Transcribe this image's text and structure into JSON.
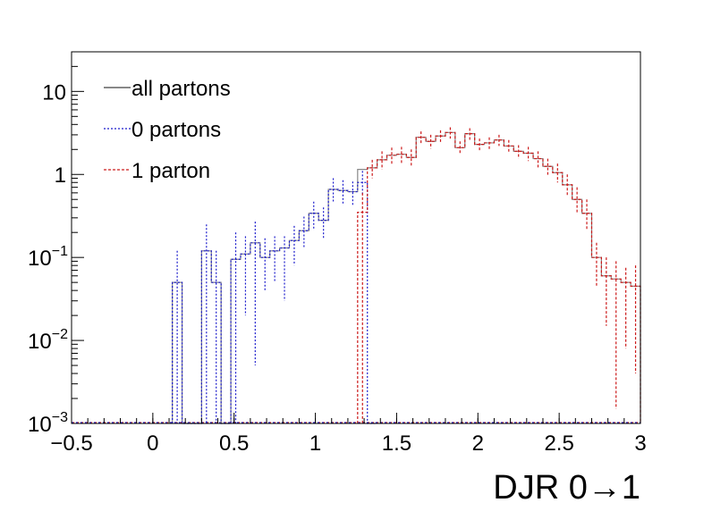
{
  "chart_data": {
    "type": "histogram",
    "title": "",
    "xlabel": "DJR 0→1",
    "ylabel": "",
    "xlim": [
      -0.5,
      3.0
    ],
    "ylim": [
      0.001,
      30
    ],
    "yscale": "log",
    "bin_width": 0.06,
    "x_ticks": [
      "−0.5",
      "0",
      "0.5",
      "1",
      "1.5",
      "2",
      "2.5",
      "3"
    ],
    "y_ticks": [
      {
        "base": "10",
        "exp": "−3"
      },
      {
        "base": "10",
        "exp": "−2"
      },
      {
        "base": "10",
        "exp": "−1"
      },
      {
        "base": "1",
        "exp": ""
      },
      {
        "base": "10",
        "exp": ""
      }
    ],
    "legend": {
      "position": "top-left",
      "entries": [
        "all partons",
        "0 partons",
        "1 parton"
      ]
    },
    "series": [
      {
        "name": "0 partons",
        "color": "#1a1acc",
        "style": "dotted",
        "bins": [
          {
            "x0": 0.12,
            "y": 0.05,
            "err_hi": 0.12,
            "err_lo": 0.001
          },
          {
            "x0": 0.18,
            "y": 0.001
          },
          {
            "x0": 0.24,
            "y": 0.001
          },
          {
            "x0": 0.3,
            "y": 0.12,
            "err_hi": 0.25,
            "err_lo": 0.001
          },
          {
            "x0": 0.36,
            "y": 0.05,
            "err_hi": 0.12,
            "err_lo": 0.001
          },
          {
            "x0": 0.42,
            "y": 0.001
          },
          {
            "x0": 0.48,
            "y": 0.095,
            "err_hi": 0.2,
            "err_lo": 0.001
          },
          {
            "x0": 0.54,
            "y": 0.11,
            "err_hi": 0.18,
            "err_lo": 0.02
          },
          {
            "x0": 0.6,
            "y": 0.15,
            "err_hi": 0.27,
            "err_lo": 0.005
          },
          {
            "x0": 0.66,
            "y": 0.1,
            "err_hi": 0.17,
            "err_lo": 0.04
          },
          {
            "x0": 0.72,
            "y": 0.12,
            "err_hi": 0.18,
            "err_lo": 0.05
          },
          {
            "x0": 0.78,
            "y": 0.13,
            "err_hi": 0.18,
            "err_lo": 0.03
          },
          {
            "x0": 0.84,
            "y": 0.16,
            "err_hi": 0.24,
            "err_lo": 0.08
          },
          {
            "x0": 0.9,
            "y": 0.21,
            "err_hi": 0.31,
            "err_lo": 0.13
          },
          {
            "x0": 0.96,
            "y": 0.34,
            "err_hi": 0.47,
            "err_lo": 0.22
          },
          {
            "x0": 1.02,
            "y": 0.28,
            "err_hi": 0.4,
            "err_lo": 0.17
          },
          {
            "x0": 1.08,
            "y": 0.66,
            "err_hi": 0.9,
            "err_lo": 0.45
          },
          {
            "x0": 1.14,
            "y": 0.64,
            "err_hi": 0.85,
            "err_lo": 0.43
          },
          {
            "x0": 1.2,
            "y": 0.62,
            "err_hi": 0.82,
            "err_lo": 0.42
          },
          {
            "x0": 1.26,
            "y": 0.8,
            "err_hi": 1.1,
            "err_lo": 0.55
          },
          {
            "x0": 1.32,
            "y": 0.001
          }
        ]
      },
      {
        "name": "1 parton",
        "color": "#cc1a1a",
        "style": "dashed",
        "bins": [
          {
            "x0": 1.26,
            "y": 0.35,
            "err_hi": 0.6,
            "err_lo": 0.001
          },
          {
            "x0": 1.32,
            "y": 1.2,
            "err_hi": 1.5,
            "err_lo": 0.9
          },
          {
            "x0": 1.38,
            "y": 1.5,
            "err_hi": 1.9,
            "err_lo": 1.15
          },
          {
            "x0": 1.44,
            "y": 1.7,
            "err_hi": 2.1,
            "err_lo": 1.3
          },
          {
            "x0": 1.5,
            "y": 1.75,
            "err_hi": 2.15,
            "err_lo": 1.35
          },
          {
            "x0": 1.56,
            "y": 1.6,
            "err_hi": 2.0,
            "err_lo": 1.25
          },
          {
            "x0": 1.62,
            "y": 2.8,
            "err_hi": 3.3,
            "err_lo": 2.3
          },
          {
            "x0": 1.68,
            "y": 2.5,
            "err_hi": 3.0,
            "err_lo": 2.05
          },
          {
            "x0": 1.74,
            "y": 2.9,
            "err_hi": 3.4,
            "err_lo": 2.4
          },
          {
            "x0": 1.8,
            "y": 3.2,
            "err_hi": 3.7,
            "err_lo": 2.7
          },
          {
            "x0": 1.86,
            "y": 2.1,
            "err_hi": 2.5,
            "err_lo": 1.75
          },
          {
            "x0": 1.92,
            "y": 3.1,
            "err_hi": 3.6,
            "err_lo": 2.6
          },
          {
            "x0": 1.98,
            "y": 2.3,
            "err_hi": 2.7,
            "err_lo": 1.9
          },
          {
            "x0": 2.04,
            "y": 2.4,
            "err_hi": 2.8,
            "err_lo": 2.0
          },
          {
            "x0": 2.1,
            "y": 2.6,
            "err_hi": 3.0,
            "err_lo": 2.2
          },
          {
            "x0": 2.16,
            "y": 2.2,
            "err_hi": 2.6,
            "err_lo": 1.85
          },
          {
            "x0": 2.22,
            "y": 1.9,
            "err_hi": 2.25,
            "err_lo": 1.55
          },
          {
            "x0": 2.28,
            "y": 1.8,
            "err_hi": 2.15,
            "err_lo": 1.45
          },
          {
            "x0": 2.34,
            "y": 1.55,
            "err_hi": 1.9,
            "err_lo": 1.2
          },
          {
            "x0": 2.4,
            "y": 1.25,
            "err_hi": 1.55,
            "err_lo": 0.95
          },
          {
            "x0": 2.46,
            "y": 1.05,
            "err_hi": 1.35,
            "err_lo": 0.8
          },
          {
            "x0": 2.52,
            "y": 0.75,
            "err_hi": 1.0,
            "err_lo": 0.55
          },
          {
            "x0": 2.58,
            "y": 0.5,
            "err_hi": 0.7,
            "err_lo": 0.35
          },
          {
            "x0": 2.64,
            "y": 0.34,
            "err_hi": 0.5,
            "err_lo": 0.22
          },
          {
            "x0": 2.7,
            "y": 0.1,
            "err_hi": 0.15,
            "err_lo": 0.045
          },
          {
            "x0": 2.76,
            "y": 0.06,
            "err_hi": 0.1,
            "err_lo": 0.015
          },
          {
            "x0": 2.82,
            "y": 0.055,
            "err_hi": 0.09,
            "err_lo": 0.0015
          },
          {
            "x0": 2.88,
            "y": 0.05,
            "err_hi": 0.075,
            "err_lo": 0.008
          },
          {
            "x0": 2.94,
            "y": 0.045,
            "err_hi": 0.08,
            "err_lo": 0.004
          }
        ]
      }
    ],
    "all_color": "#888888"
  }
}
